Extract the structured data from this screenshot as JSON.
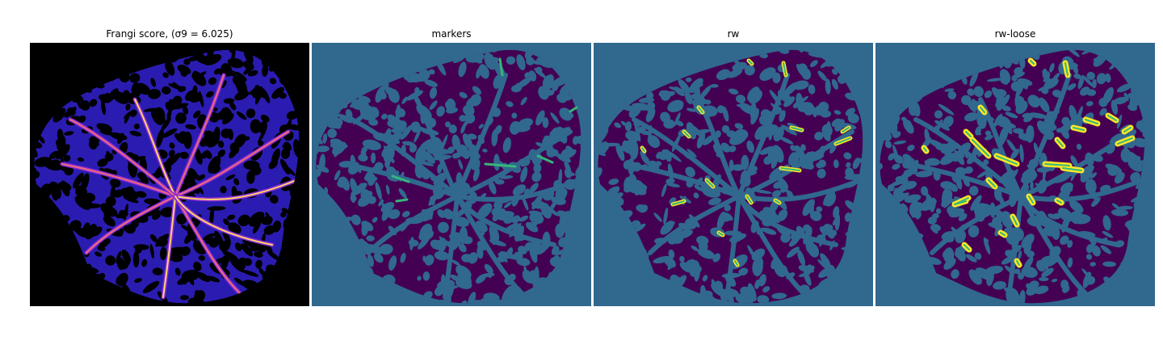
{
  "figure": {
    "panels": [
      {
        "id": "frangi",
        "title": "Frangi score, (σ9 = 6.025)"
      },
      {
        "id": "markers",
        "title": "markers"
      },
      {
        "id": "rw",
        "title": "rw"
      },
      {
        "id": "rw-loose",
        "title": "rw-loose"
      }
    ]
  },
  "colors": {
    "frangi_background": "#000000",
    "frangi_low": "#2a1cb0",
    "frangi_mid": "#8a2bd6",
    "frangi_high": "#f06a7a",
    "frangi_peak": "#ffd36b",
    "seg_background": "#31688e",
    "seg_tissue": "#440154",
    "seg_marker": "#35b779",
    "seg_label": "#fde725"
  }
}
